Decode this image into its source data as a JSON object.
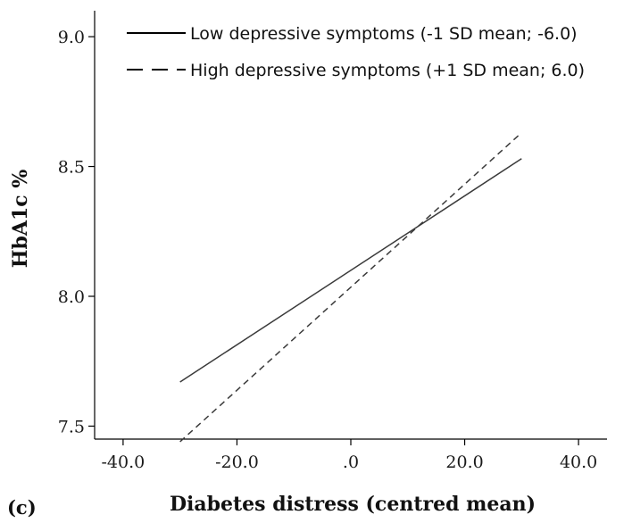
{
  "chart_data": {
    "type": "line",
    "panel_label": "(c)",
    "title": "",
    "xlabel": "Diabetes distress (centred mean)",
    "ylabel": "HbA1c %",
    "xlim": [
      -45,
      45
    ],
    "ylim": [
      7.45,
      9.1
    ],
    "x_ticks": [
      -40,
      -20,
      0,
      20,
      40
    ],
    "x_tick_labels": [
      "-40.0",
      "-20.0",
      ".0",
      "20.0",
      "40.0"
    ],
    "y_ticks": [
      7.5,
      8.0,
      8.5,
      9.0
    ],
    "y_tick_labels": [
      "7.5",
      "8.0",
      "8.5",
      "9.0"
    ],
    "grid": false,
    "legend_position": "top-right",
    "series": [
      {
        "name": "Low depressive symptoms (-1 SD mean; -6.0)",
        "style": "solid",
        "color": "#3a3a3a",
        "x": [
          -30,
          30
        ],
        "y": [
          7.67,
          8.53
        ]
      },
      {
        "name": "High depressive symptoms (+1 SD mean; 6.0)",
        "style": "dashed",
        "color": "#3a3a3a",
        "x": [
          -30,
          30
        ],
        "y": [
          7.44,
          8.63
        ]
      }
    ]
  }
}
